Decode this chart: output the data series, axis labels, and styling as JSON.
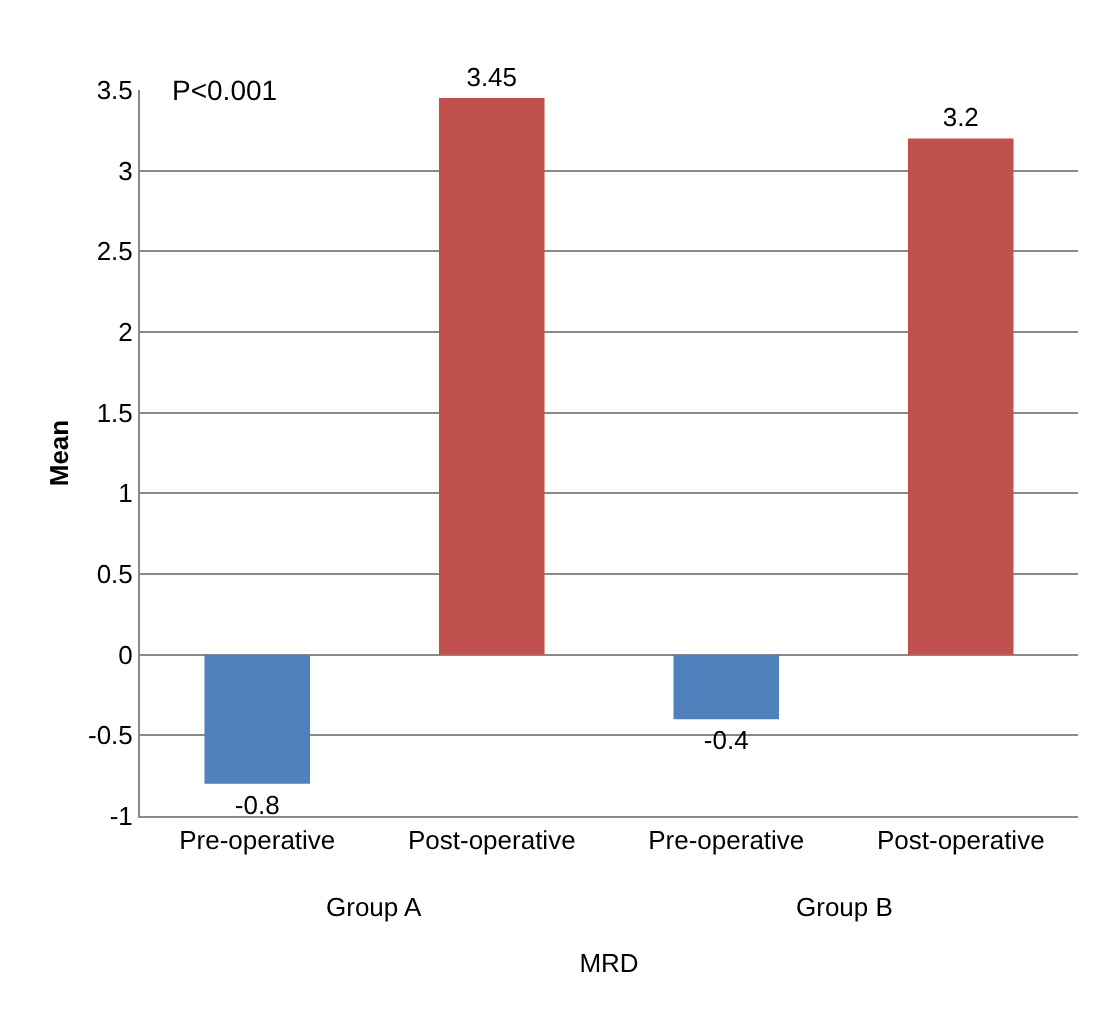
{
  "chart_data": {
    "type": "bar",
    "xlabel": "MRD",
    "ylabel": "Mean",
    "categories": [
      "Pre-operative",
      "Post-operative",
      "Pre-operative",
      "Post-operative"
    ],
    "values": [
      -0.8,
      3.45,
      -0.4,
      3.2
    ],
    "colors": [
      "#4f81bd",
      "#c0504d",
      "#4f81bd",
      "#c0504d"
    ],
    "data_labels": true,
    "ylim": [
      -1,
      3.5
    ],
    "yticks": [
      -1,
      -0.5,
      0,
      0.5,
      1,
      1.5,
      2,
      2.5,
      3,
      3.5
    ],
    "grid": "y",
    "annotations": [
      "P<0.001",
      "Group A",
      "Group B"
    ]
  }
}
